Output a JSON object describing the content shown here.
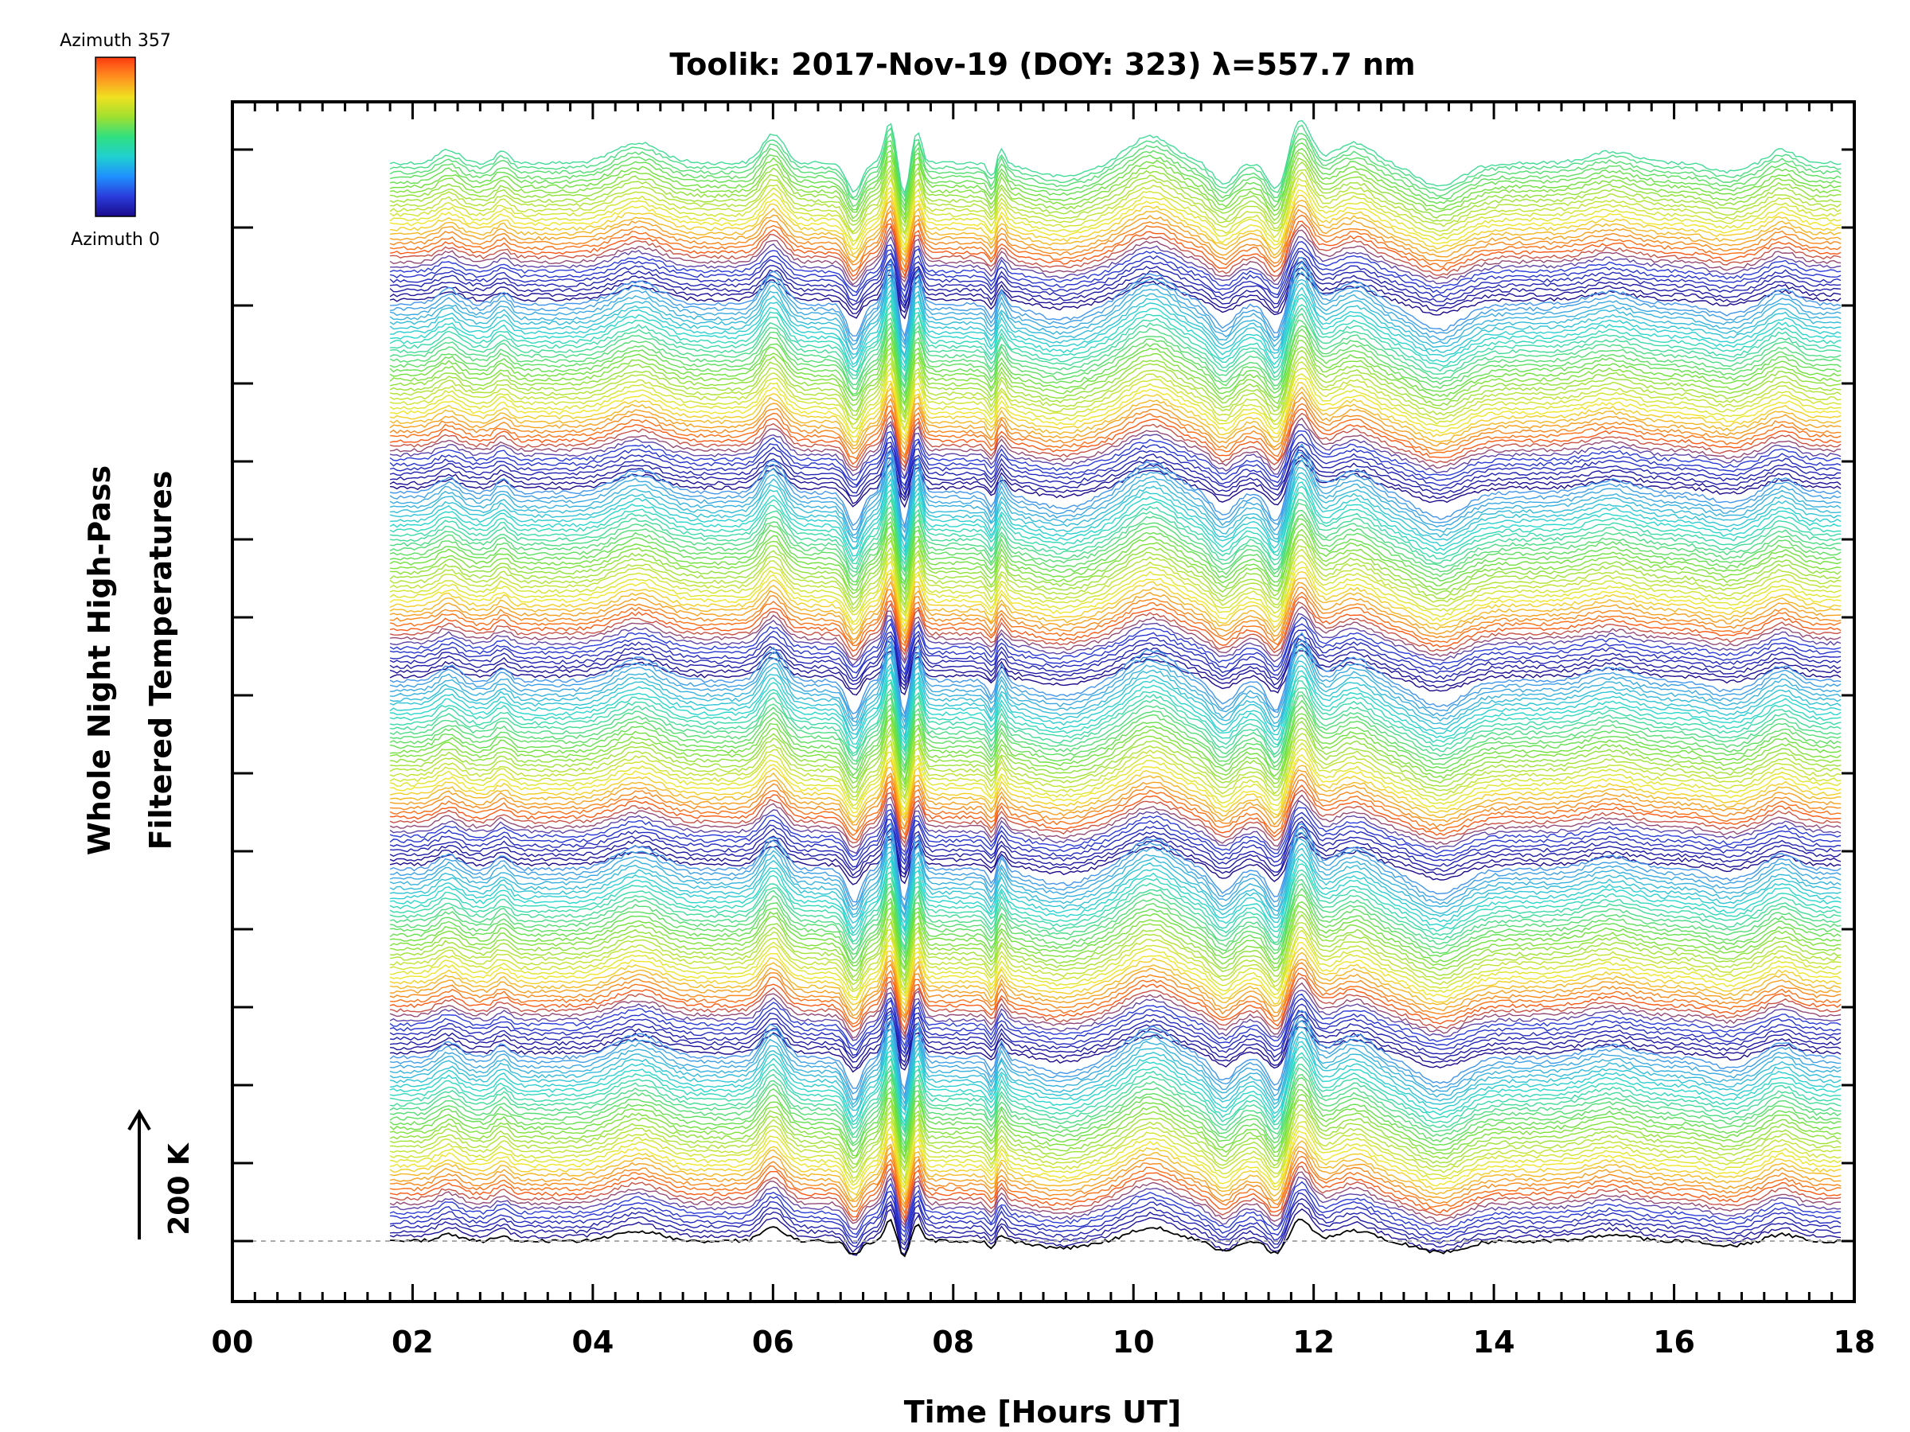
{
  "chart_data": {
    "type": "line",
    "title": "Toolik: 2017-Nov-19 (DOY: 323) λ=557.7 nm",
    "xlabel": "Time [Hours UT]",
    "ylabel_line1": "Whole Night High-Pass",
    "ylabel_line2": "Filtered Temperatures",
    "xlim": [
      0,
      18
    ],
    "x_ticks": [
      "00",
      "02",
      "04",
      "06",
      "08",
      "10",
      "12",
      "14",
      "16",
      "18"
    ],
    "x_tick_values": [
      0,
      2,
      4,
      6,
      8,
      10,
      12,
      14,
      16,
      18
    ],
    "data_x_range": [
      1.75,
      17.85
    ],
    "y_scale_bar": "200 K",
    "y_major_tick_count": 15,
    "legend": {
      "top_label": "Azimuth 357",
      "bottom_label": "Azimuth 0",
      "colormap": "rainbow",
      "colors": [
        "#1a0a8c",
        "#2a3cdc",
        "#1e90ff",
        "#20d0d0",
        "#30e080",
        "#a0e030",
        "#f0e020",
        "#ff9020",
        "#ff3a10"
      ]
    },
    "series_count": 230,
    "baseline_color": "#000000",
    "zero_line_color": "#aaaaaa",
    "feature_times_hours": [
      2.4,
      3.0,
      4.5,
      6.0,
      6.9,
      7.3,
      7.6,
      8.5,
      9.2,
      10.2,
      11.0,
      11.6,
      11.85,
      12.45,
      13.4,
      15.3,
      16.6,
      17.2
    ]
  }
}
